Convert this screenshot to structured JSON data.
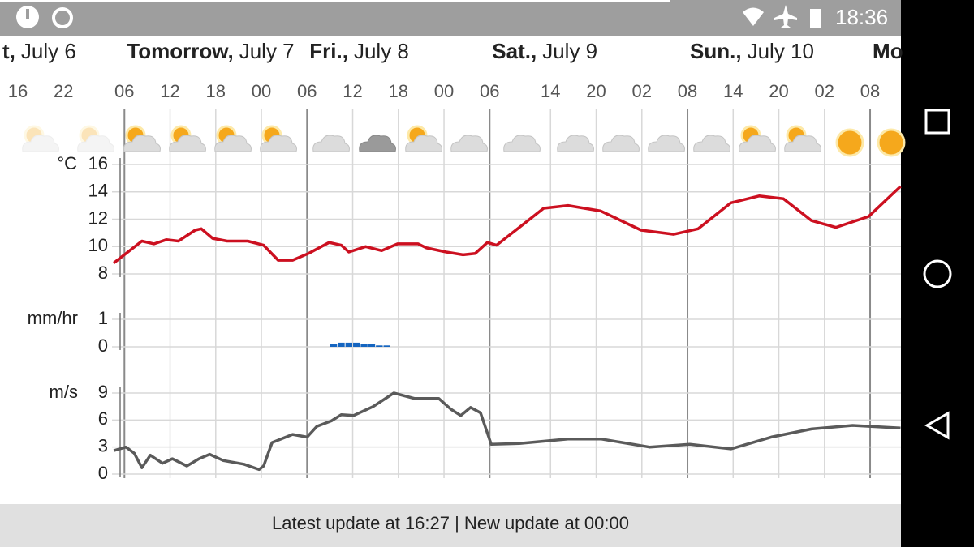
{
  "status_bar": {
    "time": "18:36"
  },
  "days": [
    {
      "x": -2.35,
      "bold": "t,",
      "rest": "July 6"
    },
    {
      "x": 14,
      "bold": "Tomorrow,",
      "rest": "July 7"
    },
    {
      "x": 38,
      "bold": "Fri.,",
      "rest": "July 8"
    },
    {
      "x": 62,
      "bold": "Sat.,",
      "rest": "July 9"
    },
    {
      "x": 88,
      "bold": "Sun.,",
      "rest": "July 10"
    },
    {
      "x": 112,
      "bold": "Mo",
      "rest": ""
    }
  ],
  "footer": "Latest update at 16:27 | New update at 00:00",
  "chart_data": [
    {
      "type": "line",
      "y_label": "°C",
      "color": "#cc1020",
      "grid": true,
      "xlim": [
        -2.35,
        116.05
      ],
      "ylim": [
        8,
        16
      ],
      "yticks": [
        8,
        10,
        12,
        14,
        16
      ],
      "xticks": [
        {
          "value": 0,
          "label": "16"
        },
        {
          "value": 6,
          "label": "22"
        },
        {
          "value": 14,
          "label": "06"
        },
        {
          "value": 20,
          "label": "12"
        },
        {
          "value": 26,
          "label": "18"
        },
        {
          "value": 32,
          "label": "00"
        },
        {
          "value": 38,
          "label": "06"
        },
        {
          "value": 44,
          "label": "12"
        },
        {
          "value": 50,
          "label": "18"
        },
        {
          "value": 56,
          "label": "00"
        },
        {
          "value": 62,
          "label": "06"
        },
        {
          "value": 70,
          "label": "14"
        },
        {
          "value": 76,
          "label": "20"
        },
        {
          "value": 82,
          "label": "02"
        },
        {
          "value": 88,
          "label": "08"
        },
        {
          "value": 94,
          "label": "14"
        },
        {
          "value": 100,
          "label": "20"
        },
        {
          "value": 106,
          "label": "02"
        },
        {
          "value": 112,
          "label": "08"
        }
      ],
      "x": [
        12.6,
        16.3,
        17.9,
        19.5,
        21.1,
        23.3,
        24.1,
        25.6,
        27.5,
        30.2,
        32.3,
        34.2,
        36.1,
        38.2,
        40.9,
        42.5,
        43.5,
        45.7,
        47.8,
        49.9,
        52.6,
        53.7,
        56.3,
        58.5,
        60.1,
        61.7,
        62.9,
        65.9,
        69.1,
        72.3,
        76.6,
        81.9,
        86.2,
        89.4,
        93.7,
        97.4,
        100.6,
        104.3,
        107.5,
        111.8,
        116
      ],
      "values": [
        8.8,
        10.4,
        10.2,
        10.5,
        10.4,
        11.2,
        11.3,
        10.6,
        10.4,
        10.4,
        10.1,
        9.0,
        9.0,
        9.5,
        10.3,
        10.1,
        9.6,
        10.0,
        9.7,
        10.2,
        10.2,
        9.9,
        9.6,
        9.4,
        9.5,
        10.3,
        10.1,
        11.4,
        12.8,
        13.0,
        12.6,
        11.2,
        10.9,
        11.3,
        13.2,
        13.7,
        13.5,
        11.9,
        11.4,
        12.2,
        14.4
      ]
    },
    {
      "type": "bar",
      "y_label": "mm/hr",
      "color": "#1565c0",
      "grid": true,
      "xlim": [
        -2.35,
        116.05
      ],
      "ylim": [
        0,
        1
      ],
      "yticks": [
        0,
        1
      ],
      "x": [
        41.5,
        42.5,
        43.5,
        44.5,
        45.5,
        46.5,
        47.5,
        48.5
      ],
      "values": [
        0.1,
        0.15,
        0.15,
        0.15,
        0.1,
        0.1,
        0.05,
        0.05
      ]
    },
    {
      "type": "line",
      "y_label": "m/s",
      "color": "#5a5a5a",
      "grid": true,
      "xlim": [
        -2.35,
        116.05
      ],
      "ylim": [
        0,
        9
      ],
      "yticks": [
        0,
        3,
        6,
        9
      ],
      "x": [
        12.6,
        14.2,
        15.3,
        16.3,
        17.4,
        19,
        20.3,
        22.2,
        23.8,
        25.2,
        27,
        29.7,
        31.7,
        32.3,
        33.4,
        36.1,
        38,
        39.3,
        41.2,
        42.5,
        44.1,
        46.7,
        49.4,
        52.1,
        55.3,
        56.9,
        58.2,
        59.5,
        60.8,
        62.2,
        65.9,
        72.3,
        76.6,
        83,
        88.3,
        93.7,
        99,
        104.3,
        109.7,
        116
      ],
      "values": [
        2.6,
        3.0,
        2.3,
        0.7,
        2.1,
        1.2,
        1.7,
        0.9,
        1.7,
        2.2,
        1.5,
        1.1,
        0.5,
        0.9,
        3.5,
        4.4,
        4.1,
        5.3,
        5.9,
        6.6,
        6.5,
        7.5,
        9.0,
        8.4,
        8.4,
        7.2,
        6.5,
        7.4,
        6.8,
        3.3,
        3.4,
        3.9,
        3.9,
        3.0,
        3.3,
        2.8,
        4.1,
        5.0,
        5.4,
        5.1
      ]
    }
  ]
}
